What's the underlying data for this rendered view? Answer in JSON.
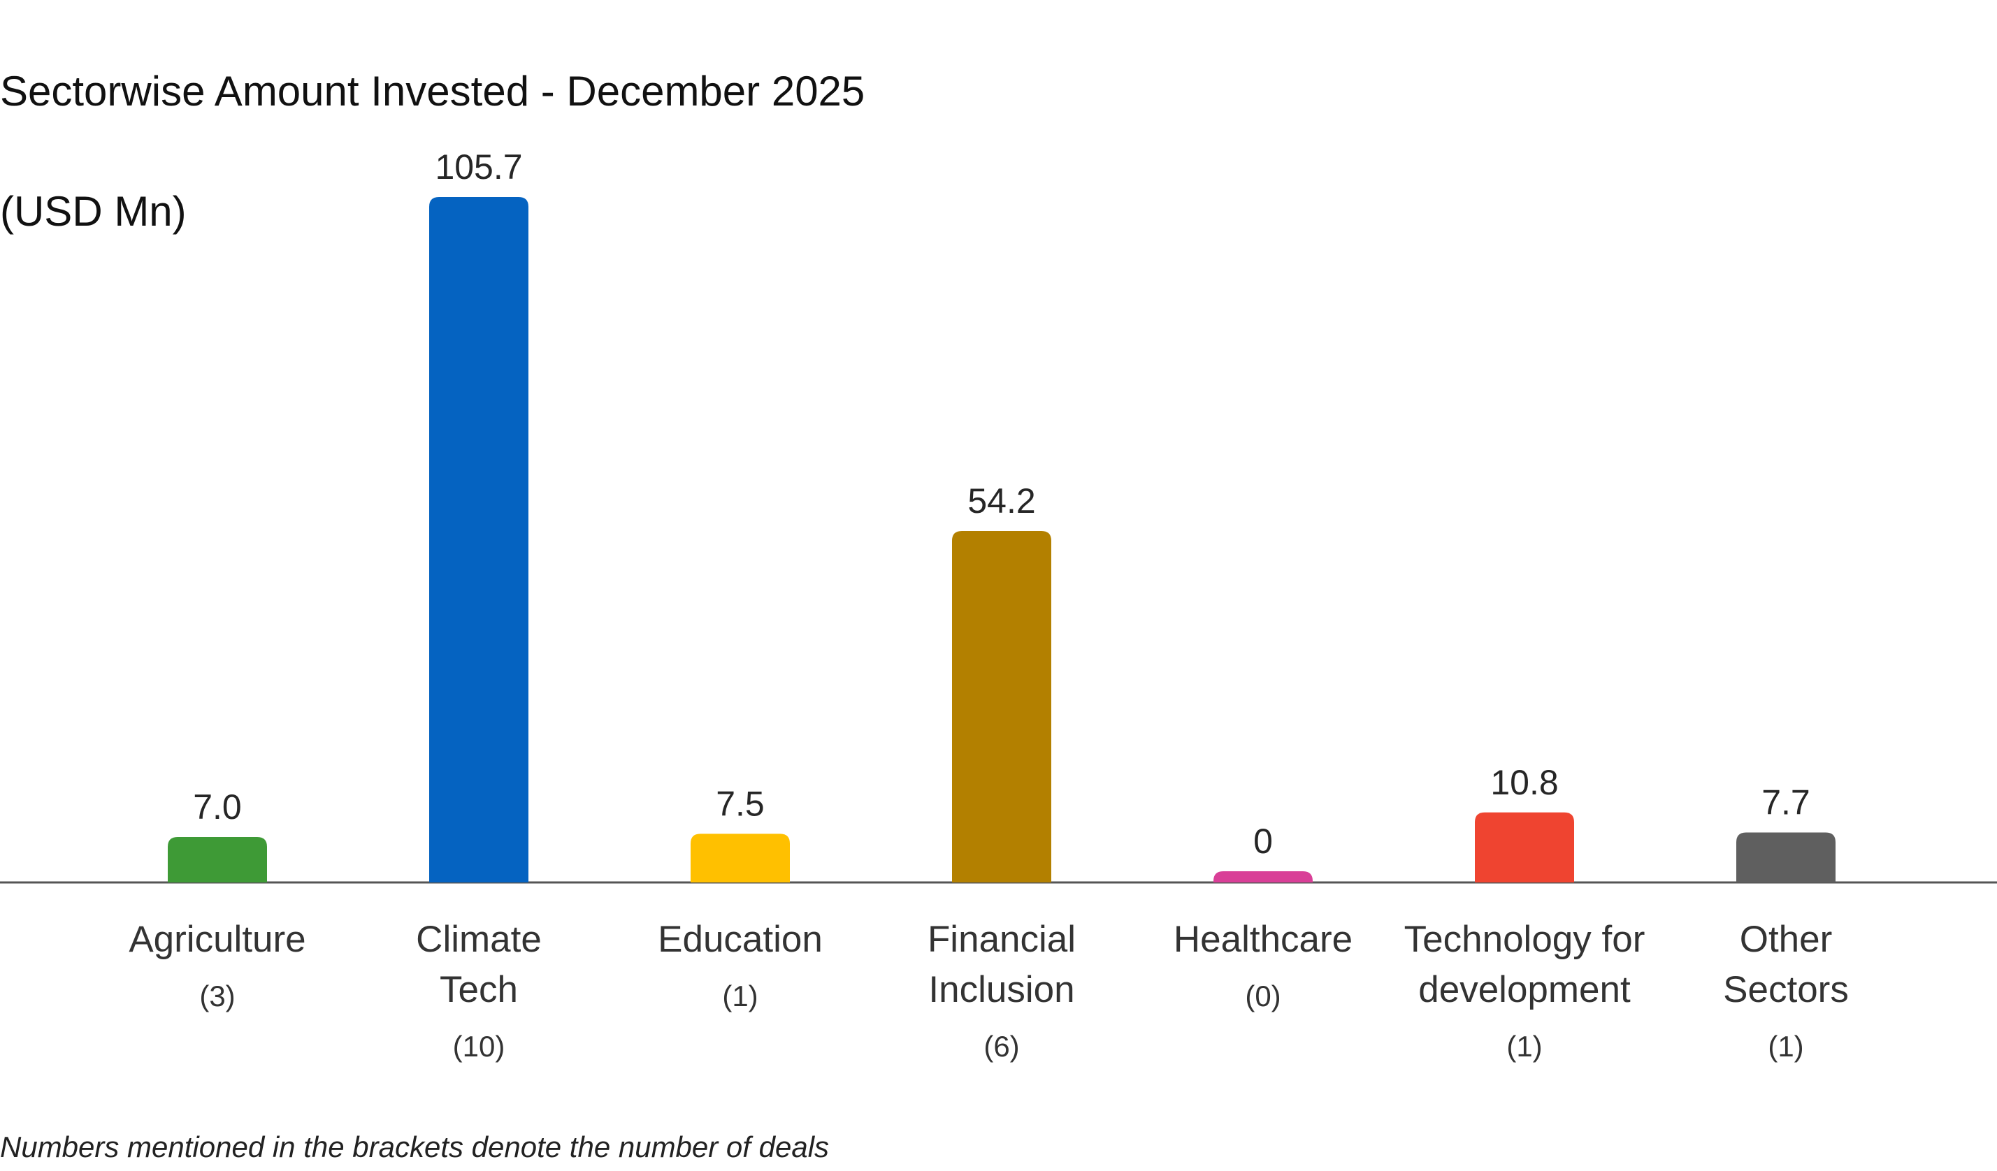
{
  "chart_data": {
    "type": "bar",
    "title": "Sectorwise Amount Invested - December 2025",
    "subtitle": "(USD Mn)",
    "categories": [
      [
        "Agriculture"
      ],
      [
        "Climate",
        "Tech"
      ],
      [
        "Education"
      ],
      [
        "Financial",
        "Inclusion"
      ],
      [
        "Healthcare"
      ],
      [
        "Technology for",
        "development"
      ],
      [
        "Other",
        "Sectors"
      ]
    ],
    "deal_counts": [
      "(3)",
      "(10)",
      "(1)",
      "(6)",
      "(0)",
      "(1)",
      "(1)"
    ],
    "values": [
      7.0,
      105.7,
      7.5,
      54.2,
      0,
      10.8,
      7.7
    ],
    "value_labels": [
      "7.0",
      "105.7",
      "7.5",
      "54.2",
      "0",
      "10.8",
      "7.7"
    ],
    "colors": [
      "#3e9a36",
      "#0563c1",
      "#ffc000",
      "#b38000",
      "#d93f97",
      "#ef4430",
      "#5f5f5f"
    ],
    "baseline_color": "#555555",
    "ylim": [
      0,
      105.7
    ],
    "grid": false,
    "legend": "none",
    "footnote": "Numbers mentioned in the brackets denote the number of deals"
  }
}
